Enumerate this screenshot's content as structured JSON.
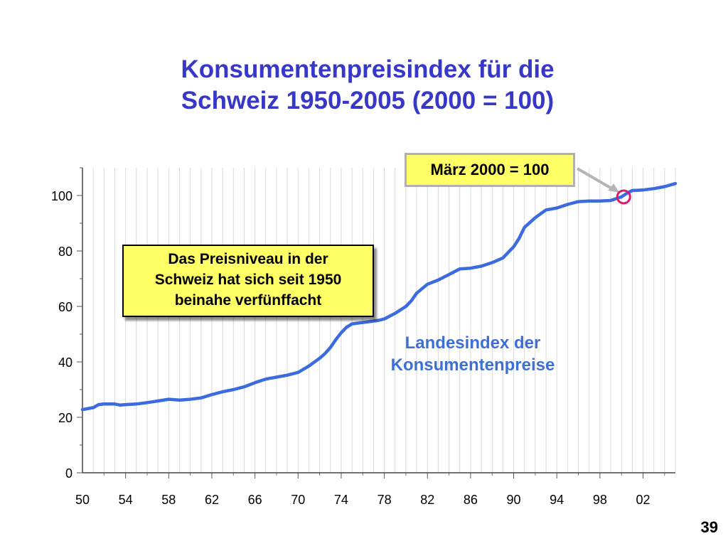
{
  "slide": {
    "title_line1": "Konsumentenpreisindex für die",
    "title_line2": "Schweiz 1950-2005 (2000 = 100)",
    "callout_lines": [
      "Das Preisniveau in der",
      "Schweiz hat sich seit 1950",
      "beinahe verfünffacht"
    ],
    "march_label": "März 2000 = 100",
    "series_label_lines": [
      "Landesindex der",
      "Konsumentenpreise"
    ],
    "page_number": "39"
  },
  "colors": {
    "title": "#3737c8",
    "line": "#3c6be0",
    "callout_fill": "#ffff66",
    "marker_ring": "#d81b6a",
    "grid": "#d9d9d9"
  },
  "chart_data": {
    "type": "line",
    "title": "",
    "xlabel": "",
    "ylabel": "",
    "xlim": [
      1950,
      2005
    ],
    "ylim": [
      0,
      110
    ],
    "yticks": [
      0,
      20,
      40,
      60,
      80,
      100
    ],
    "xticks": [
      1950,
      1954,
      1958,
      1962,
      1966,
      1970,
      1974,
      1978,
      1982,
      1986,
      1990,
      1994,
      1998,
      2002
    ],
    "xtick_labels": [
      "50",
      "54",
      "58",
      "62",
      "66",
      "70",
      "74",
      "78",
      "82",
      "86",
      "90",
      "94",
      "98",
      "02"
    ],
    "grid": "vertical",
    "highlight": {
      "x": 2000.2,
      "y": 99.5,
      "label": "März 2000 = 100"
    },
    "series": [
      {
        "x": [
          1950,
          1951,
          1951.5,
          1952,
          1953,
          1953.5,
          1954,
          1955,
          1956,
          1957,
          1958,
          1959,
          1960,
          1961,
          1962,
          1963,
          1964,
          1965,
          1966,
          1967,
          1968,
          1969,
          1970,
          1971,
          1972,
          1972.5,
          1973,
          1973.5,
          1974,
          1974.5,
          1975,
          1976,
          1977,
          1977.5,
          1978,
          1979,
          1980,
          1980.5,
          1981,
          1982,
          1983,
          1984,
          1985,
          1986,
          1987,
          1988,
          1989,
          1990,
          1990.5,
          1991,
          1992,
          1993,
          1994,
          1995,
          1996,
          1997,
          1998,
          1999,
          2000,
          2000.5,
          2001,
          2002,
          2003,
          2004,
          2005
        ],
        "y": [
          22.8,
          23.5,
          24.6,
          24.8,
          24.8,
          24.4,
          24.6,
          24.8,
          25.3,
          25.9,
          26.5,
          26.2,
          26.5,
          27.0,
          28.2,
          29.2,
          30.0,
          31.0,
          32.5,
          33.8,
          34.5,
          35.2,
          36.2,
          38.5,
          41.3,
          43.0,
          45.2,
          48.0,
          50.5,
          52.5,
          53.7,
          54.2,
          54.7,
          55.0,
          55.5,
          57.5,
          60.0,
          62.0,
          64.8,
          68.0,
          69.5,
          71.5,
          73.5,
          73.8,
          74.5,
          75.8,
          77.5,
          81.5,
          84.5,
          88.5,
          92.0,
          94.8,
          95.5,
          96.8,
          97.8,
          98.0,
          98.0,
          98.2,
          99.5,
          100.8,
          101.8,
          102.0,
          102.5,
          103.2,
          104.3
        ]
      }
    ]
  }
}
